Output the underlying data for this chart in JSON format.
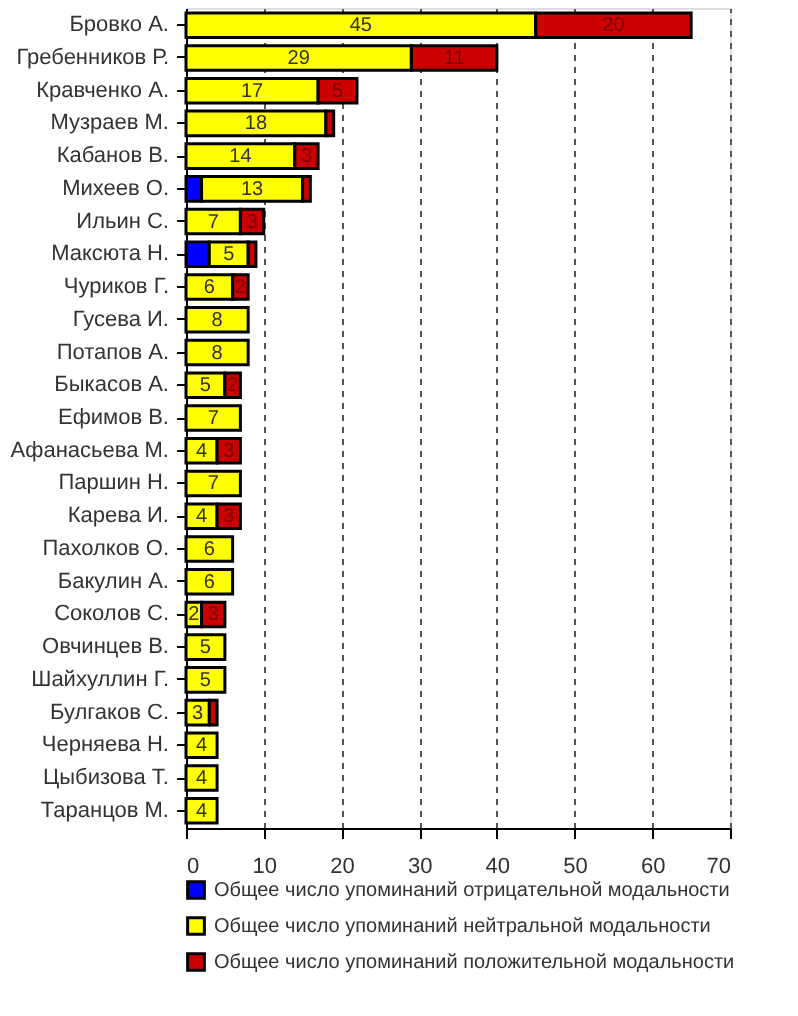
{
  "chart_data": {
    "type": "bar",
    "orientation": "horizontal",
    "stacked": true,
    "categories": [
      "Бровко А.",
      "Гребенников Р.",
      "Кравченко А.",
      "Музраев М.",
      "Кабанов В.",
      "Михеев О.",
      "Ильин С.",
      "Максюта Н.",
      "Чуриков Г.",
      "Гусева И.",
      "Потапов А.",
      "Быкасов А.",
      "Ефимов В.",
      "Афанасьева М.",
      "Паршин Н.",
      "Карева И.",
      "Пахолков О.",
      "Бакулин А.",
      "Соколов С.",
      "Овчинцев В.",
      "Шайхуллин Г.",
      "Булгаков С.",
      "Черняева Н.",
      "Цыбизова Т.",
      "Таранцов М."
    ],
    "series": [
      {
        "name": "Общее число упоминаний отрицательной модальности",
        "color": "#0000ff",
        "values": [
          null,
          null,
          null,
          null,
          null,
          2,
          null,
          3,
          null,
          null,
          null,
          null,
          null,
          null,
          null,
          null,
          null,
          null,
          null,
          null,
          null,
          null,
          null,
          null,
          null
        ],
        "value_labels": [
          null,
          null,
          null,
          null,
          null,
          null,
          null,
          null,
          null,
          null,
          null,
          null,
          null,
          null,
          null,
          null,
          null,
          null,
          null,
          null,
          null,
          null,
          null,
          null,
          null
        ]
      },
      {
        "name": "Общее число упоминаний нейтральной модальности",
        "color": "#ffff00",
        "values": [
          45,
          29,
          17,
          18,
          14,
          13,
          7,
          5,
          6,
          8,
          8,
          5,
          7,
          4,
          7,
          4,
          6,
          6,
          2,
          5,
          5,
          3,
          4,
          4,
          4
        ],
        "value_labels": [
          "45",
          "29",
          "17",
          "18",
          "14",
          "13",
          "7",
          "5",
          "6",
          "8",
          "8",
          "5",
          "7",
          "4",
          "7",
          "4",
          "6",
          "6",
          "2",
          "5",
          "5",
          "3",
          "4",
          "4",
          "4"
        ]
      },
      {
        "name": "Общее число упоминаний положительной модальности",
        "color": "#cc0000",
        "values": [
          20,
          11,
          5,
          1,
          3,
          1,
          3,
          1,
          2,
          null,
          null,
          2,
          null,
          3,
          null,
          3,
          null,
          null,
          3,
          null,
          null,
          1,
          null,
          null,
          null
        ],
        "value_labels": [
          "20",
          "11",
          "5",
          null,
          "3",
          null,
          "3",
          null,
          "2",
          null,
          null,
          "2",
          null,
          "3",
          null,
          "3",
          null,
          null,
          "3",
          null,
          null,
          null,
          null,
          null,
          null
        ]
      }
    ],
    "xlim": [
      0,
      70
    ],
    "xticks": [
      0,
      10,
      20,
      30,
      40,
      50,
      60,
      70
    ],
    "grid": "x",
    "legend": "bottom"
  }
}
